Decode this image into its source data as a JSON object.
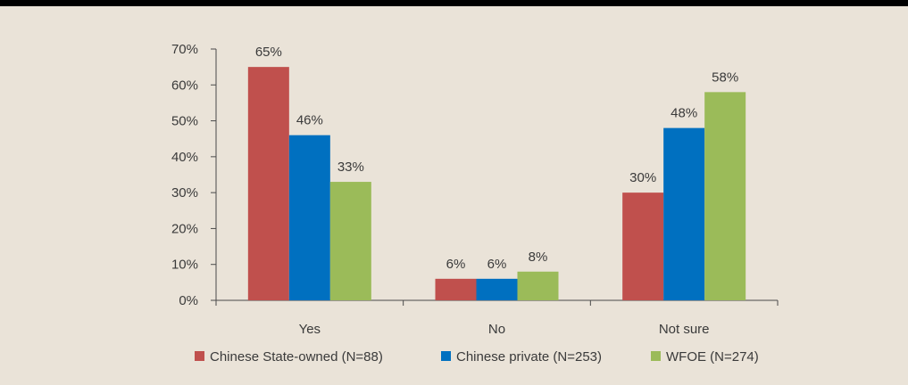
{
  "chart_data": {
    "type": "bar",
    "categories": [
      "Yes",
      "No",
      "Not sure"
    ],
    "series": [
      {
        "name": "Chinese State-owned (N=88)",
        "values": [
          65,
          6,
          30
        ],
        "color": "#c0504d"
      },
      {
        "name": "Chinese private (N=253)",
        "values": [
          46,
          6,
          48
        ],
        "color": "#0070c0"
      },
      {
        "name": "WFOE (N=274)",
        "values": [
          33,
          8,
          58
        ],
        "color": "#9bbb59"
      }
    ],
    "data_labels": [
      [
        "65%",
        "6%",
        "30%"
      ],
      [
        "46%",
        "6%",
        "48%"
      ],
      [
        "33%",
        "8%",
        "58%"
      ]
    ],
    "y_ticks": [
      "0%",
      "10%",
      "20%",
      "30%",
      "40%",
      "50%",
      "60%",
      "70%"
    ],
    "ylim": [
      0,
      70
    ],
    "y_unit": "%",
    "grid": false,
    "legend_position": "bottom-center"
  },
  "colors": {
    "background": "#eae3d8",
    "top_bar": "#000000",
    "axis": "#4a4a4a"
  }
}
